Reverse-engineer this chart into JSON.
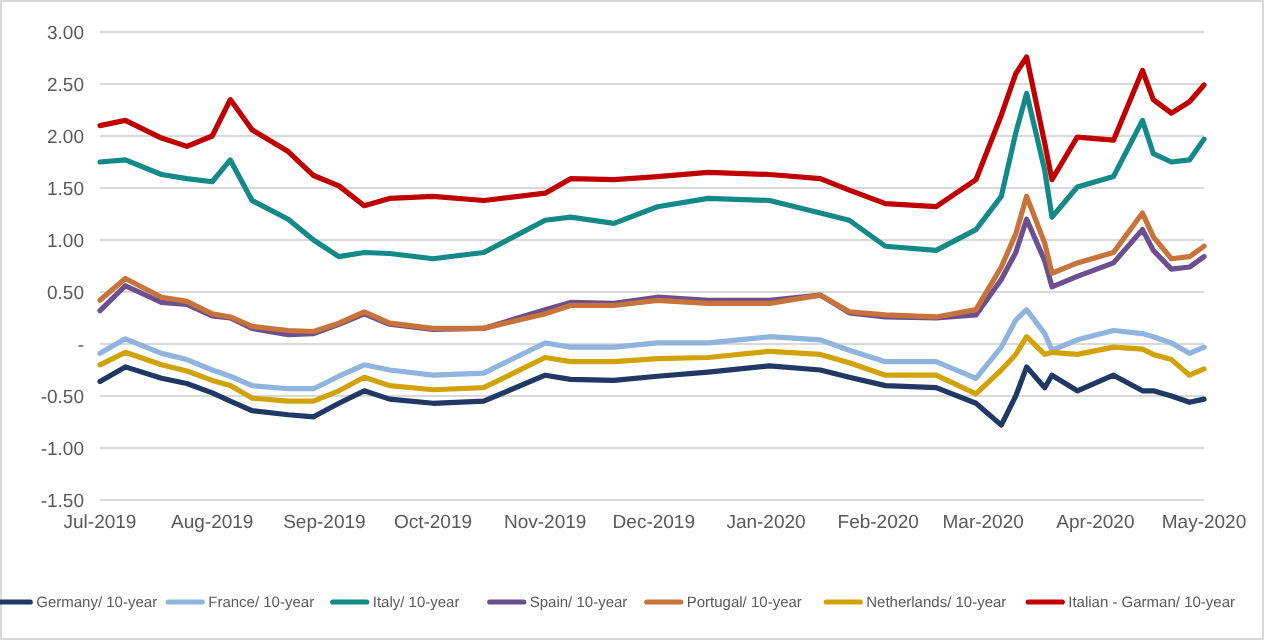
{
  "chart_data": {
    "type": "line",
    "x": [
      "2019-07-01",
      "2019-07-08",
      "2019-07-18",
      "2019-07-25",
      "2019-08-01",
      "2019-08-06",
      "2019-08-12",
      "2019-08-22",
      "2019-08-29",
      "2019-09-05",
      "2019-09-12",
      "2019-09-19",
      "2019-10-01",
      "2019-10-15",
      "2019-11-01",
      "2019-11-08",
      "2019-11-20",
      "2019-12-02",
      "2019-12-16",
      "2020-01-02",
      "2020-01-16",
      "2020-01-24",
      "2020-02-03",
      "2020-02-17",
      "2020-02-28",
      "2020-03-06",
      "2020-03-10",
      "2020-03-13",
      "2020-03-18",
      "2020-03-20",
      "2020-03-27",
      "2020-04-06",
      "2020-04-14",
      "2020-04-17",
      "2020-04-22",
      "2020-04-27",
      "2020-05-01"
    ],
    "series": [
      {
        "name": "Germany/ 10-year",
        "color": "#1f3864",
        "values": [
          -0.36,
          -0.22,
          -0.33,
          -0.38,
          -0.47,
          -0.55,
          -0.64,
          -0.68,
          -0.7,
          -0.57,
          -0.45,
          -0.53,
          -0.57,
          -0.55,
          -0.3,
          -0.34,
          -0.35,
          -0.31,
          -0.27,
          -0.21,
          -0.25,
          -0.32,
          -0.4,
          -0.42,
          -0.57,
          -0.78,
          -0.5,
          -0.22,
          -0.42,
          -0.3,
          -0.45,
          -0.3,
          -0.45,
          -0.45,
          -0.5,
          -0.56,
          -0.53
        ]
      },
      {
        "name": "France/ 10-year",
        "color": "#8fb4de",
        "values": [
          -0.09,
          0.05,
          -0.09,
          -0.15,
          -0.25,
          -0.31,
          -0.4,
          -0.43,
          -0.43,
          -0.31,
          -0.2,
          -0.25,
          -0.3,
          -0.28,
          0.01,
          -0.03,
          -0.03,
          0.01,
          0.01,
          0.07,
          0.04,
          -0.06,
          -0.17,
          -0.17,
          -0.33,
          -0.03,
          0.23,
          0.33,
          0.1,
          -0.06,
          0.04,
          0.13,
          0.1,
          0.07,
          0.01,
          -0.09,
          -0.03
        ]
      },
      {
        "name": "Italy/ 10-year",
        "color": "#138a87",
        "values": [
          1.75,
          1.77,
          1.63,
          1.59,
          1.56,
          1.77,
          1.38,
          1.2,
          1.0,
          0.84,
          0.88,
          0.87,
          0.82,
          0.88,
          1.19,
          1.22,
          1.16,
          1.32,
          1.4,
          1.38,
          1.26,
          1.19,
          0.94,
          0.9,
          1.1,
          1.42,
          2.03,
          2.41,
          1.67,
          1.22,
          1.51,
          1.61,
          2.15,
          1.83,
          1.75,
          1.77,
          1.97
        ]
      },
      {
        "name": "Spain/ 10-year",
        "color": "#6b4f8e",
        "values": [
          0.32,
          0.56,
          0.4,
          0.38,
          0.27,
          0.25,
          0.15,
          0.09,
          0.1,
          0.19,
          0.29,
          0.19,
          0.14,
          0.15,
          0.33,
          0.4,
          0.39,
          0.45,
          0.42,
          0.42,
          0.47,
          0.3,
          0.26,
          0.25,
          0.28,
          0.62,
          0.88,
          1.2,
          0.8,
          0.55,
          0.65,
          0.78,
          1.1,
          0.9,
          0.72,
          0.74,
          0.84
        ]
      },
      {
        "name": "Portugal/ 10-year",
        "color": "#c8733a",
        "values": [
          0.42,
          0.63,
          0.45,
          0.41,
          0.29,
          0.26,
          0.17,
          0.13,
          0.12,
          0.2,
          0.31,
          0.2,
          0.15,
          0.15,
          0.29,
          0.37,
          0.37,
          0.42,
          0.39,
          0.39,
          0.47,
          0.31,
          0.28,
          0.26,
          0.33,
          0.74,
          1.06,
          1.42,
          0.97,
          0.68,
          0.78,
          0.88,
          1.26,
          1.03,
          0.82,
          0.84,
          0.94
        ]
      },
      {
        "name": "Netherlands/ 10-year",
        "color": "#d1a20a",
        "values": [
          -0.2,
          -0.08,
          -0.2,
          -0.26,
          -0.35,
          -0.4,
          -0.52,
          -0.55,
          -0.55,
          -0.45,
          -0.32,
          -0.4,
          -0.44,
          -0.42,
          -0.13,
          -0.17,
          -0.17,
          -0.14,
          -0.13,
          -0.07,
          -0.1,
          -0.18,
          -0.3,
          -0.3,
          -0.48,
          -0.25,
          -0.1,
          0.07,
          -0.1,
          -0.08,
          -0.1,
          -0.03,
          -0.05,
          -0.1,
          -0.15,
          -0.3,
          -0.24
        ]
      },
      {
        "name": "Italian - Garman/ 10-year",
        "color": "#c00000",
        "values": [
          2.1,
          2.15,
          1.98,
          1.9,
          2.0,
          2.35,
          2.06,
          1.85,
          1.62,
          1.52,
          1.33,
          1.4,
          1.42,
          1.38,
          1.45,
          1.59,
          1.58,
          1.61,
          1.65,
          1.63,
          1.59,
          1.48,
          1.35,
          1.32,
          1.58,
          2.2,
          2.6,
          2.76,
          1.93,
          1.58,
          1.99,
          1.96,
          2.63,
          2.35,
          2.22,
          2.33,
          2.49
        ]
      }
    ],
    "xlim": [
      "2019-07-01",
      "2020-05-01"
    ],
    "xticks": [
      {
        "value": "2019-07-01",
        "label": "Jul-2019"
      },
      {
        "value": "2019-08-01",
        "label": "Aug-2019"
      },
      {
        "value": "2019-09-01",
        "label": "Sep-2019"
      },
      {
        "value": "2019-10-01",
        "label": "Oct-2019"
      },
      {
        "value": "2019-11-01",
        "label": "Nov-2019"
      },
      {
        "value": "2019-12-01",
        "label": "Dec-2019"
      },
      {
        "value": "2020-01-01",
        "label": "Jan-2020"
      },
      {
        "value": "2020-02-01",
        "label": "Feb-2020"
      },
      {
        "value": "2020-03-01",
        "label": "Mar-2020"
      },
      {
        "value": "2020-04-01",
        "label": "Apr-2020"
      },
      {
        "value": "2020-05-01",
        "label": "May-2020"
      }
    ],
    "ylim": [
      -1.5,
      3
    ],
    "yticks": [
      {
        "value": -1.5,
        "label": "-1.50"
      },
      {
        "value": -1,
        "label": "-1.00"
      },
      {
        "value": -0.5,
        "label": "-0.50"
      },
      {
        "value": 0,
        "label": "-"
      },
      {
        "value": 0.5,
        "label": "0.50"
      },
      {
        "value": 1,
        "label": "1.00"
      },
      {
        "value": 1.5,
        "label": "1.50"
      },
      {
        "value": 2,
        "label": "2.00"
      },
      {
        "value": 2.5,
        "label": "2.50"
      },
      {
        "value": 3,
        "label": "3.00"
      }
    ],
    "grid": "y",
    "legend": "bottom",
    "marker": "none",
    "line_style": "solid"
  }
}
